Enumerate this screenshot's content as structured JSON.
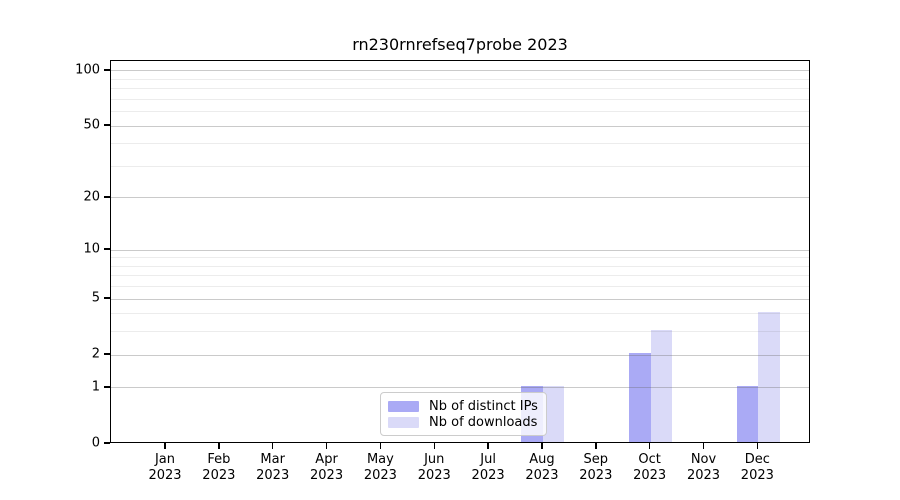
{
  "title": "rn230rnrefseq7probe 2023",
  "chart_data": {
    "type": "bar",
    "title": "rn230rnrefseq7probe 2023",
    "categories": [
      "Jan 2023",
      "Feb 2023",
      "Mar 2023",
      "Apr 2023",
      "May 2023",
      "Jun 2023",
      "Jul 2023",
      "Aug 2023",
      "Sep 2023",
      "Oct 2023",
      "Nov 2023",
      "Dec 2023"
    ],
    "series": [
      {
        "name": "Nb of distinct IPs",
        "color": "#aaaaf5",
        "values": [
          0,
          0,
          0,
          0,
          0,
          0,
          0,
          1,
          0,
          2,
          0,
          1
        ]
      },
      {
        "name": "Nb of downloads",
        "color": "#dadaf8",
        "values": [
          0,
          0,
          0,
          0,
          0,
          0,
          0,
          1,
          0,
          3,
          0,
          4
        ]
      }
    ],
    "xlabel": "",
    "ylabel": "",
    "yscale": "log1p",
    "ylim": [
      0,
      113
    ],
    "y_major_ticks": [
      0,
      1,
      2,
      5,
      10,
      20,
      50,
      100
    ],
    "y_minor_gridlines": [
      3,
      4,
      6,
      7,
      8,
      9,
      30,
      40,
      60,
      70,
      80,
      90
    ],
    "grid": "horizontal",
    "legend_position": "bottom-center-inside"
  }
}
